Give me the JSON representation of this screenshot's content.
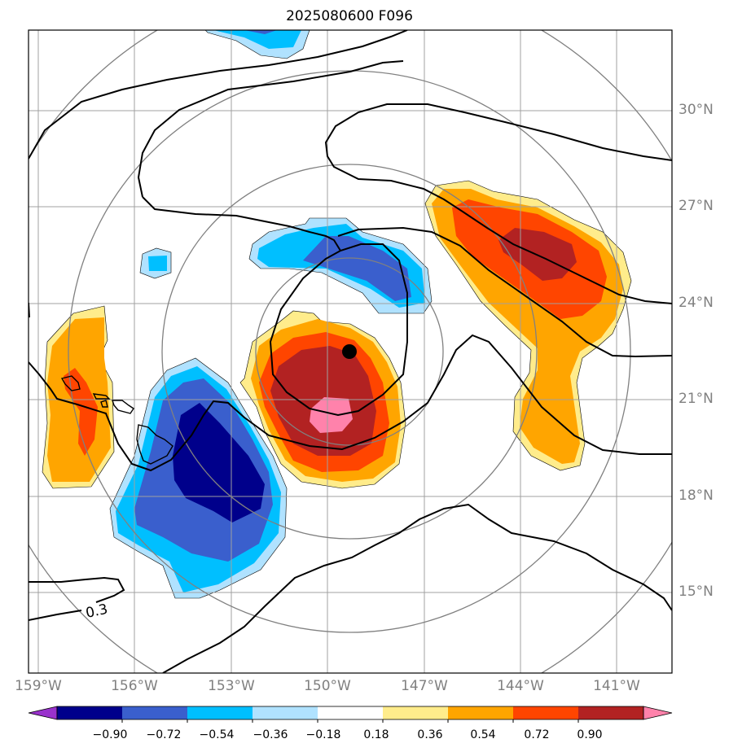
{
  "title": "2025080600 F096",
  "map": {
    "lon_labels": [
      "159°W",
      "156°W",
      "153°W",
      "150°W",
      "147°W",
      "144°W",
      "141°W"
    ],
    "lat_labels": [
      "30°N",
      "27°N",
      "24°N",
      "21°N",
      "18°N",
      "15°N"
    ],
    "contour_label": "0.3",
    "storm_center_marker": "storm-center-dot"
  },
  "colorbar": {
    "labels": [
      "−0.90",
      "−0.72",
      "−0.54",
      "−0.36",
      "−0.18",
      "0.18",
      "0.36",
      "0.54",
      "0.72",
      "0.90"
    ],
    "colors": [
      "#9932cc",
      "#00008b",
      "#3a5fcd",
      "#00bfff",
      "#b0e2ff",
      "#ffffff",
      "#ffec8b",
      "#ffa500",
      "#ff4500",
      "#b22222",
      "#ff82ab"
    ]
  }
}
